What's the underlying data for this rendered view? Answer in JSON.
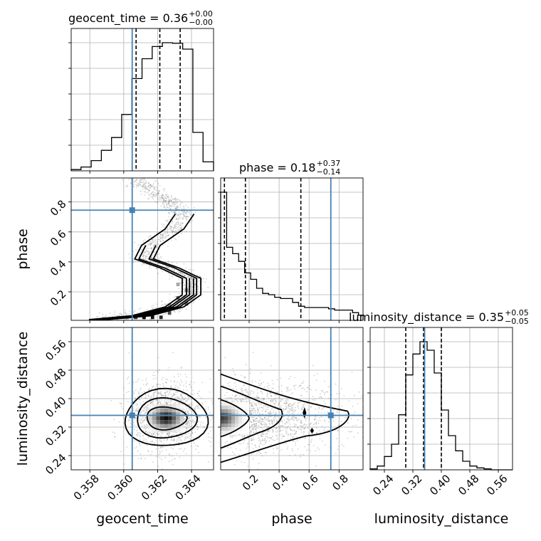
{
  "chart_data": {
    "type": "corner",
    "parameters": [
      "geocent_time",
      "phase",
      "luminosity_distance"
    ],
    "injection": {
      "geocent_time": 0.3605,
      "phase": 0.745,
      "luminosity_distance": 0.353
    },
    "colors": {
      "histogram": "#000000",
      "injection_line": "#4682b4",
      "grid": "#b0b0b0",
      "samples": "#808080"
    },
    "grid": true,
    "diagonal": [
      {
        "parameter": "geocent_time",
        "title": "geocent_time = 0.36",
        "title_sup": "+0.00",
        "title_sub": "−0.00",
        "xlim": [
          0.3569,
          0.3653
        ],
        "quantiles": [
          0.36073,
          0.36213,
          0.36333
        ],
        "bin_edges": [
          0.3569,
          0.35748,
          0.35808,
          0.35868,
          0.35928,
          0.35988,
          0.36048,
          0.36108,
          0.36168,
          0.36228,
          0.36288,
          0.36348,
          0.36408,
          0.36468,
          0.3653
        ],
        "counts": [
          2,
          6,
          16,
          32,
          52,
          88,
          144,
          175,
          194,
          200,
          199,
          190,
          60,
          14
        ]
      },
      {
        "parameter": "phase",
        "title": "phase = 0.18",
        "title_sup": "+0.37",
        "title_sub": "−0.14",
        "xlim": [
          0.01,
          0.96
        ],
        "quantiles": [
          0.035,
          0.175,
          0.545
        ],
        "bin_edges": [
          0.01,
          0.05,
          0.09,
          0.13,
          0.17,
          0.21,
          0.25,
          0.29,
          0.33,
          0.37,
          0.41,
          0.45,
          0.49,
          0.53,
          0.57,
          0.61,
          0.65,
          0.69,
          0.73,
          0.77,
          0.81,
          0.85,
          0.89,
          0.93,
          0.96
        ],
        "counts": [
          100,
          57,
          52,
          46,
          37,
          32,
          25,
          21,
          20,
          18,
          17,
          17,
          14,
          11,
          10,
          10,
          10,
          10,
          9,
          8,
          8,
          8,
          6,
          4
        ]
      },
      {
        "parameter": "luminosity_distance",
        "title": "luminosity_distance = 0.35",
        "title_sup": "+0.05",
        "title_sub": "−0.05",
        "xlim": [
          0.2,
          0.6
        ],
        "quantiles": [
          0.3,
          0.35,
          0.4
        ],
        "bin_edges": [
          0.2,
          0.22,
          0.24,
          0.26,
          0.28,
          0.3,
          0.32,
          0.34,
          0.36,
          0.38,
          0.4,
          0.42,
          0.44,
          0.46,
          0.48,
          0.5,
          0.52,
          0.54,
          0.56,
          0.58,
          0.6
        ],
        "counts": [
          1,
          4,
          14,
          27,
          58,
          100,
          122,
          135,
          126,
          102,
          63,
          36,
          20,
          9,
          4,
          2,
          1,
          0,
          0,
          0
        ]
      }
    ],
    "axes": {
      "geocent_time": {
        "label": "geocent_time",
        "ticks": [
          0.358,
          0.36,
          0.362,
          0.364
        ],
        "tick_labels": [
          "0.358",
          "0.360",
          "0.362",
          "0.364"
        ]
      },
      "phase": {
        "label": "phase",
        "ticks": [
          0.2,
          0.4,
          0.6,
          0.8
        ],
        "tick_labels": [
          "0.2",
          "0.4",
          "0.6",
          "0.8"
        ]
      },
      "luminosity_distance": {
        "label": "luminosity_distance",
        "ticks": [
          0.24,
          0.32,
          0.4,
          0.48,
          0.56
        ],
        "tick_labels": [
          "0.24",
          "0.32",
          "0.40",
          "0.48",
          "0.56"
        ]
      }
    },
    "pairs": [
      {
        "x": "geocent_time",
        "y": "phase",
        "density_center": [
          0.3616,
          0.03
        ]
      },
      {
        "x": "geocent_time",
        "y": "luminosity_distance",
        "density_center": [
          0.3625,
          0.345
        ]
      },
      {
        "x": "phase",
        "y": "luminosity_distance",
        "density_center": [
          0.05,
          0.35
        ]
      }
    ]
  }
}
